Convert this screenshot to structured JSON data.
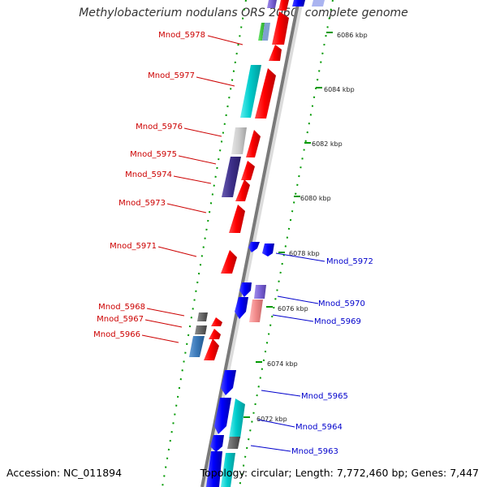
{
  "title": "Methylobacterium nodulans ORS 2060, complete genome",
  "footer": {
    "accession": "Accession: NC_011894",
    "summary": "Topology: circular; Length: 7,772,460 bp; Genes: 7,447"
  },
  "colors": {
    "forward_genes": "#ff0000",
    "reverse_genes": "#0000ff",
    "left_labels": "#cc0000",
    "right_labels": "#0000cc",
    "tick_marks": "#009900",
    "backbone": "#808080"
  },
  "kbp_marks": [
    {
      "label": "6086 kbp"
    },
    {
      "label": "6084 kbp"
    },
    {
      "label": "6082 kbp"
    },
    {
      "label": "6080 kbp"
    },
    {
      "label": "6078 kbp"
    },
    {
      "label": "6076 kbp"
    },
    {
      "label": "6074 kbp"
    },
    {
      "label": "6072 kbp"
    }
  ],
  "left_labels": [
    {
      "text": "Mnod_5978"
    },
    {
      "text": "Mnod_5977"
    },
    {
      "text": "Mnod_5976"
    },
    {
      "text": "Mnod_5975"
    },
    {
      "text": "Mnod_5974"
    },
    {
      "text": "Mnod_5973"
    },
    {
      "text": "Mnod_5971"
    },
    {
      "text": "Mnod_5968"
    },
    {
      "text": "Mnod_5967"
    },
    {
      "text": "Mnod_5966"
    }
  ],
  "right_labels": [
    {
      "text": "Mnod_5972"
    },
    {
      "text": "Mnod_5970"
    },
    {
      "text": "Mnod_5969"
    },
    {
      "text": "Mnod_5965"
    },
    {
      "text": "Mnod_5964"
    },
    {
      "text": "Mnod_5963"
    }
  ]
}
